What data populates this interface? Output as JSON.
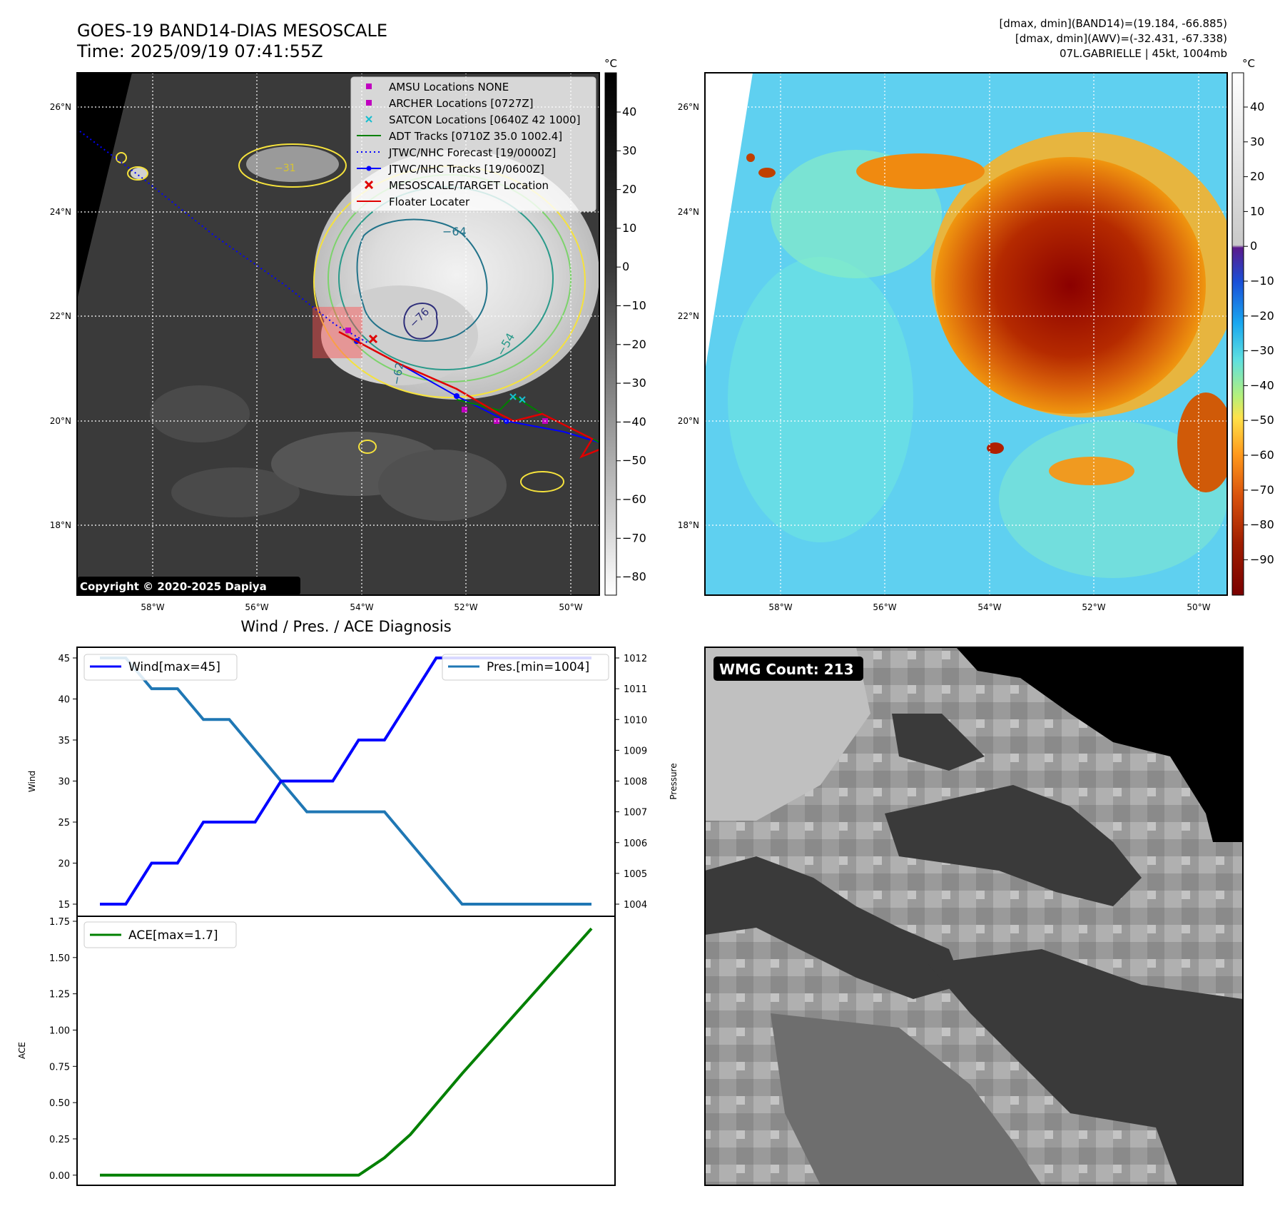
{
  "header": {
    "title_line1": "GOES-19 BAND14-DIAS MESOSCALE",
    "title_line2": "Time: 2025/09/19 07:41:55Z",
    "info_line1": "[dmax, dmin](BAND14)=(19.184, -66.885)",
    "info_line2": "[dmax, dmin](AWV)=(-32.431, -67.338)",
    "info_line3": "07L.GABRIELLE | 45kt, 1004mb"
  },
  "map_left": {
    "colorbar_unit": "°C",
    "colorbar_ticks": [
      "40",
      "30",
      "20",
      "10",
      "0",
      "−10",
      "−20",
      "−30",
      "−40",
      "−50",
      "−60",
      "−70",
      "−80"
    ],
    "lat_labels": [
      "26°N",
      "24°N",
      "22°N",
      "20°N",
      "18°N"
    ],
    "lon_labels": [
      "58°W",
      "56°W",
      "54°W",
      "52°W",
      "50°W"
    ],
    "copyright": "Copyright © 2020-2025 Dapiya",
    "contour_labels": [
      "−64",
      "−31",
      "−54",
      "−76",
      "−62"
    ],
    "legend": [
      {
        "label": "AMSU Locations NONE",
        "color": "#c000c0",
        "symbol": "square"
      },
      {
        "label": "ARCHER Locations [0727Z]",
        "color": "#c000c0",
        "symbol": "square"
      },
      {
        "label": "SATCON Locations [0640Z 42 1000]",
        "color": "#17becf",
        "symbol": "x"
      },
      {
        "label": "ADT Tracks [0710Z 35.0 1002.4]",
        "color": "#008000",
        "symbol": "line"
      },
      {
        "label": "JTWC/NHC Forecast [19/0000Z]",
        "color": "#0000ff",
        "symbol": "dotted"
      },
      {
        "label": "JTWC/NHC Tracks [19/0600Z]",
        "color": "#0000ff",
        "symbol": "line-dot"
      },
      {
        "label": "MESOSCALE/TARGET Location",
        "color": "#ff0000",
        "symbol": "x"
      },
      {
        "label": "Floater Locater",
        "color": "#ff0000",
        "symbol": "line"
      }
    ]
  },
  "map_right": {
    "colorbar_unit": "°C",
    "colorbar_ticks": [
      "40",
      "30",
      "20",
      "10",
      "0",
      "−10",
      "−20",
      "−30",
      "−40",
      "−50",
      "−60",
      "−70",
      "−80",
      "−90"
    ],
    "lat_labels": [
      "26°N",
      "24°N",
      "22°N",
      "20°N",
      "18°N"
    ],
    "lon_labels": [
      "58°W",
      "56°W",
      "54°W",
      "52°W",
      "50°W"
    ]
  },
  "wmg": {
    "label": "WMG Count: 213"
  },
  "chart_data": [
    {
      "type": "line",
      "title": "Wind / Pres. / ACE Diagnosis",
      "x": [
        0,
        1,
        2,
        3,
        4,
        5,
        6,
        7,
        8,
        9,
        10,
        11,
        12,
        13,
        14,
        15,
        16,
        17,
        18,
        19
      ],
      "series": [
        {
          "name": "Wind[max=45]",
          "axis": "left",
          "color": "#0000ff",
          "values": [
            15,
            15,
            20,
            20,
            25,
            25,
            25,
            30,
            30,
            30,
            35,
            35,
            40,
            45,
            45,
            45,
            45,
            45,
            45,
            45
          ]
        },
        {
          "name": "Pres.[min=1004]",
          "axis": "right",
          "color": "#1f77b4",
          "values": [
            1012,
            1012,
            1011,
            1011,
            1010,
            1010,
            1009,
            1008,
            1007,
            1007,
            1007,
            1007,
            1006,
            1005,
            1004,
            1004,
            1004,
            1004,
            1004,
            1004
          ]
        }
      ],
      "ylabel": "Wind",
      "ylabel_right": "Pressure",
      "ylim": [
        15,
        45
      ],
      "ylim_right": [
        1004,
        1012
      ],
      "yticks": [
        15,
        20,
        25,
        30,
        35,
        40,
        45
      ],
      "yticks_right": [
        1004,
        1005,
        1006,
        1007,
        1008,
        1009,
        1010,
        1011,
        1012
      ]
    },
    {
      "type": "line",
      "x": [
        0,
        1,
        2,
        3,
        4,
        5,
        6,
        7,
        8,
        9,
        10,
        11,
        12,
        13,
        14,
        15,
        16,
        17,
        18,
        19
      ],
      "series": [
        {
          "name": "ACE[max=1.7]",
          "color": "#008000",
          "values": [
            0,
            0,
            0,
            0,
            0,
            0,
            0,
            0,
            0,
            0,
            0,
            0.12,
            0.28,
            0.49,
            0.7,
            0.9,
            1.1,
            1.3,
            1.5,
            1.7
          ]
        }
      ],
      "ylabel": "ACE",
      "ylim": [
        -0.07,
        1.75
      ],
      "yticks": [
        "0.00",
        "0.25",
        "0.50",
        "0.75",
        "1.00",
        "1.25",
        "1.50",
        "1.75"
      ]
    }
  ]
}
